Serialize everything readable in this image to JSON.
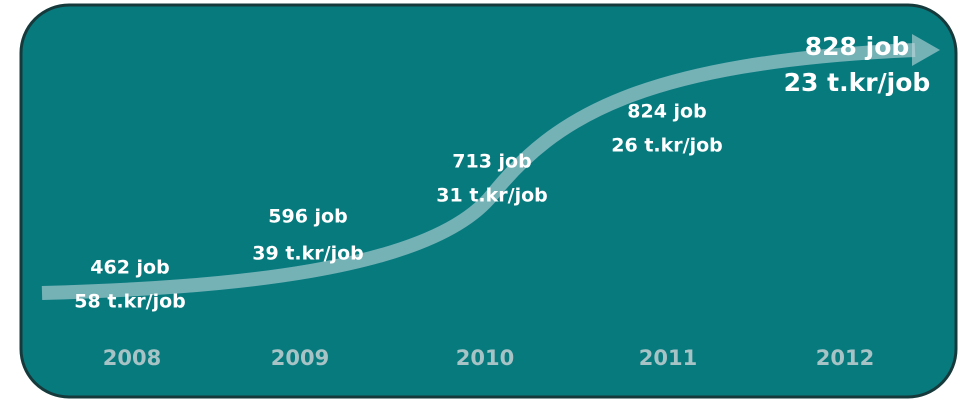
{
  "items": [
    {
      "year": "2008",
      "jobs": "462 job",
      "price": "58 t.kr/job"
    },
    {
      "year": "2009",
      "jobs": "596 job",
      "price": "39 t.kr/job"
    },
    {
      "year": "2010",
      "jobs": "713 job",
      "price": "31 t.kr/job"
    },
    {
      "year": "2011",
      "jobs": "824 job",
      "price": "26 t.kr/job"
    },
    {
      "year": "2012",
      "jobs": "828 job",
      "price": "23 t.kr/job"
    }
  ]
}
